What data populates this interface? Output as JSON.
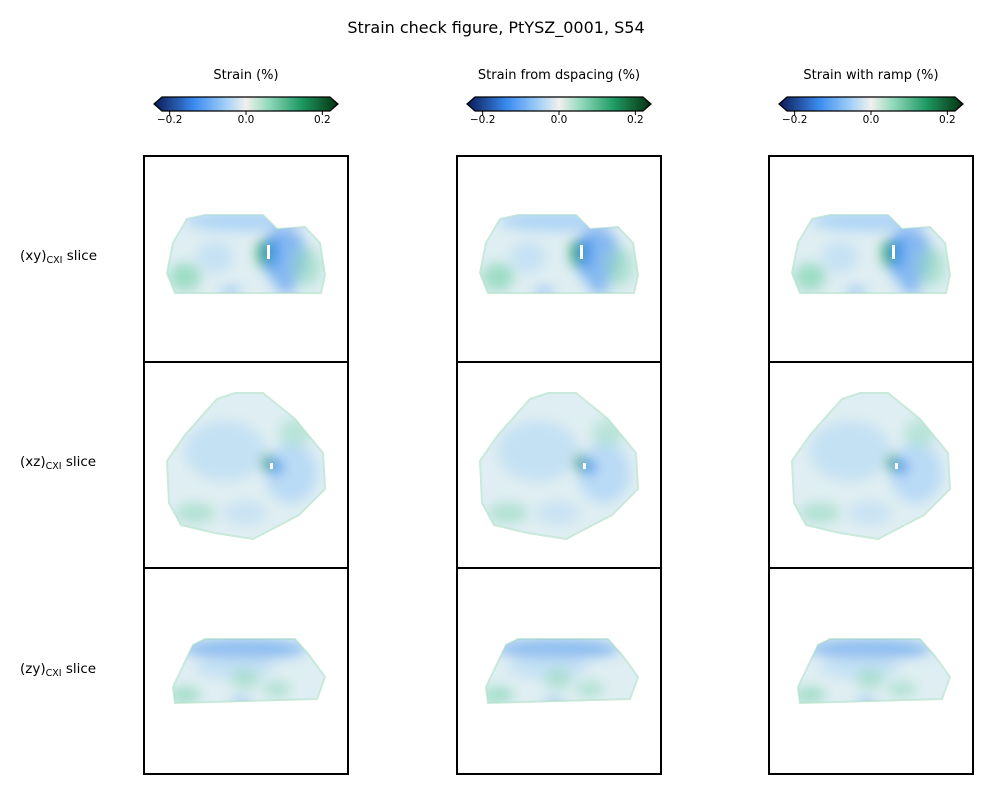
{
  "title": "Strain check figure, PtYSZ_0001, S54",
  "colors": {
    "min": "#0b1a55",
    "blue": "#3a8cf0",
    "lightblue": "#a9d3f6",
    "mid": "#f0f0ee",
    "lightgreen": "#92d9bd",
    "green": "#1e9a63",
    "max": "#06300d"
  },
  "rows": [
    {
      "pre": "(xy)",
      "sub": "CXI",
      "post": " slice"
    },
    {
      "pre": "(xz)",
      "sub": "CXI",
      "post": " slice"
    },
    {
      "pre": "(zy)",
      "sub": "CXI",
      "post": " slice"
    }
  ],
  "chart_data": {
    "type": "heatmap",
    "title": "Strain check figure, PtYSZ_0001, S54",
    "colorscale": {
      "min": -0.22,
      "max": 0.22,
      "extend": "both",
      "ticks": [
        -0.2,
        0.0,
        0.2
      ],
      "tick_labels": [
        "−0.2",
        "0.0",
        "0.2"
      ]
    },
    "panels": [
      {
        "column": "Strain (%)",
        "rows": [
          "xy",
          "xz",
          "zy"
        ]
      },
      {
        "column": "Strain from dspacing (%)",
        "rows": [
          "xy",
          "xz",
          "zy"
        ]
      },
      {
        "column": "Strain with ramp (%)",
        "rows": [
          "xy",
          "xz",
          "zy"
        ]
      }
    ]
  }
}
